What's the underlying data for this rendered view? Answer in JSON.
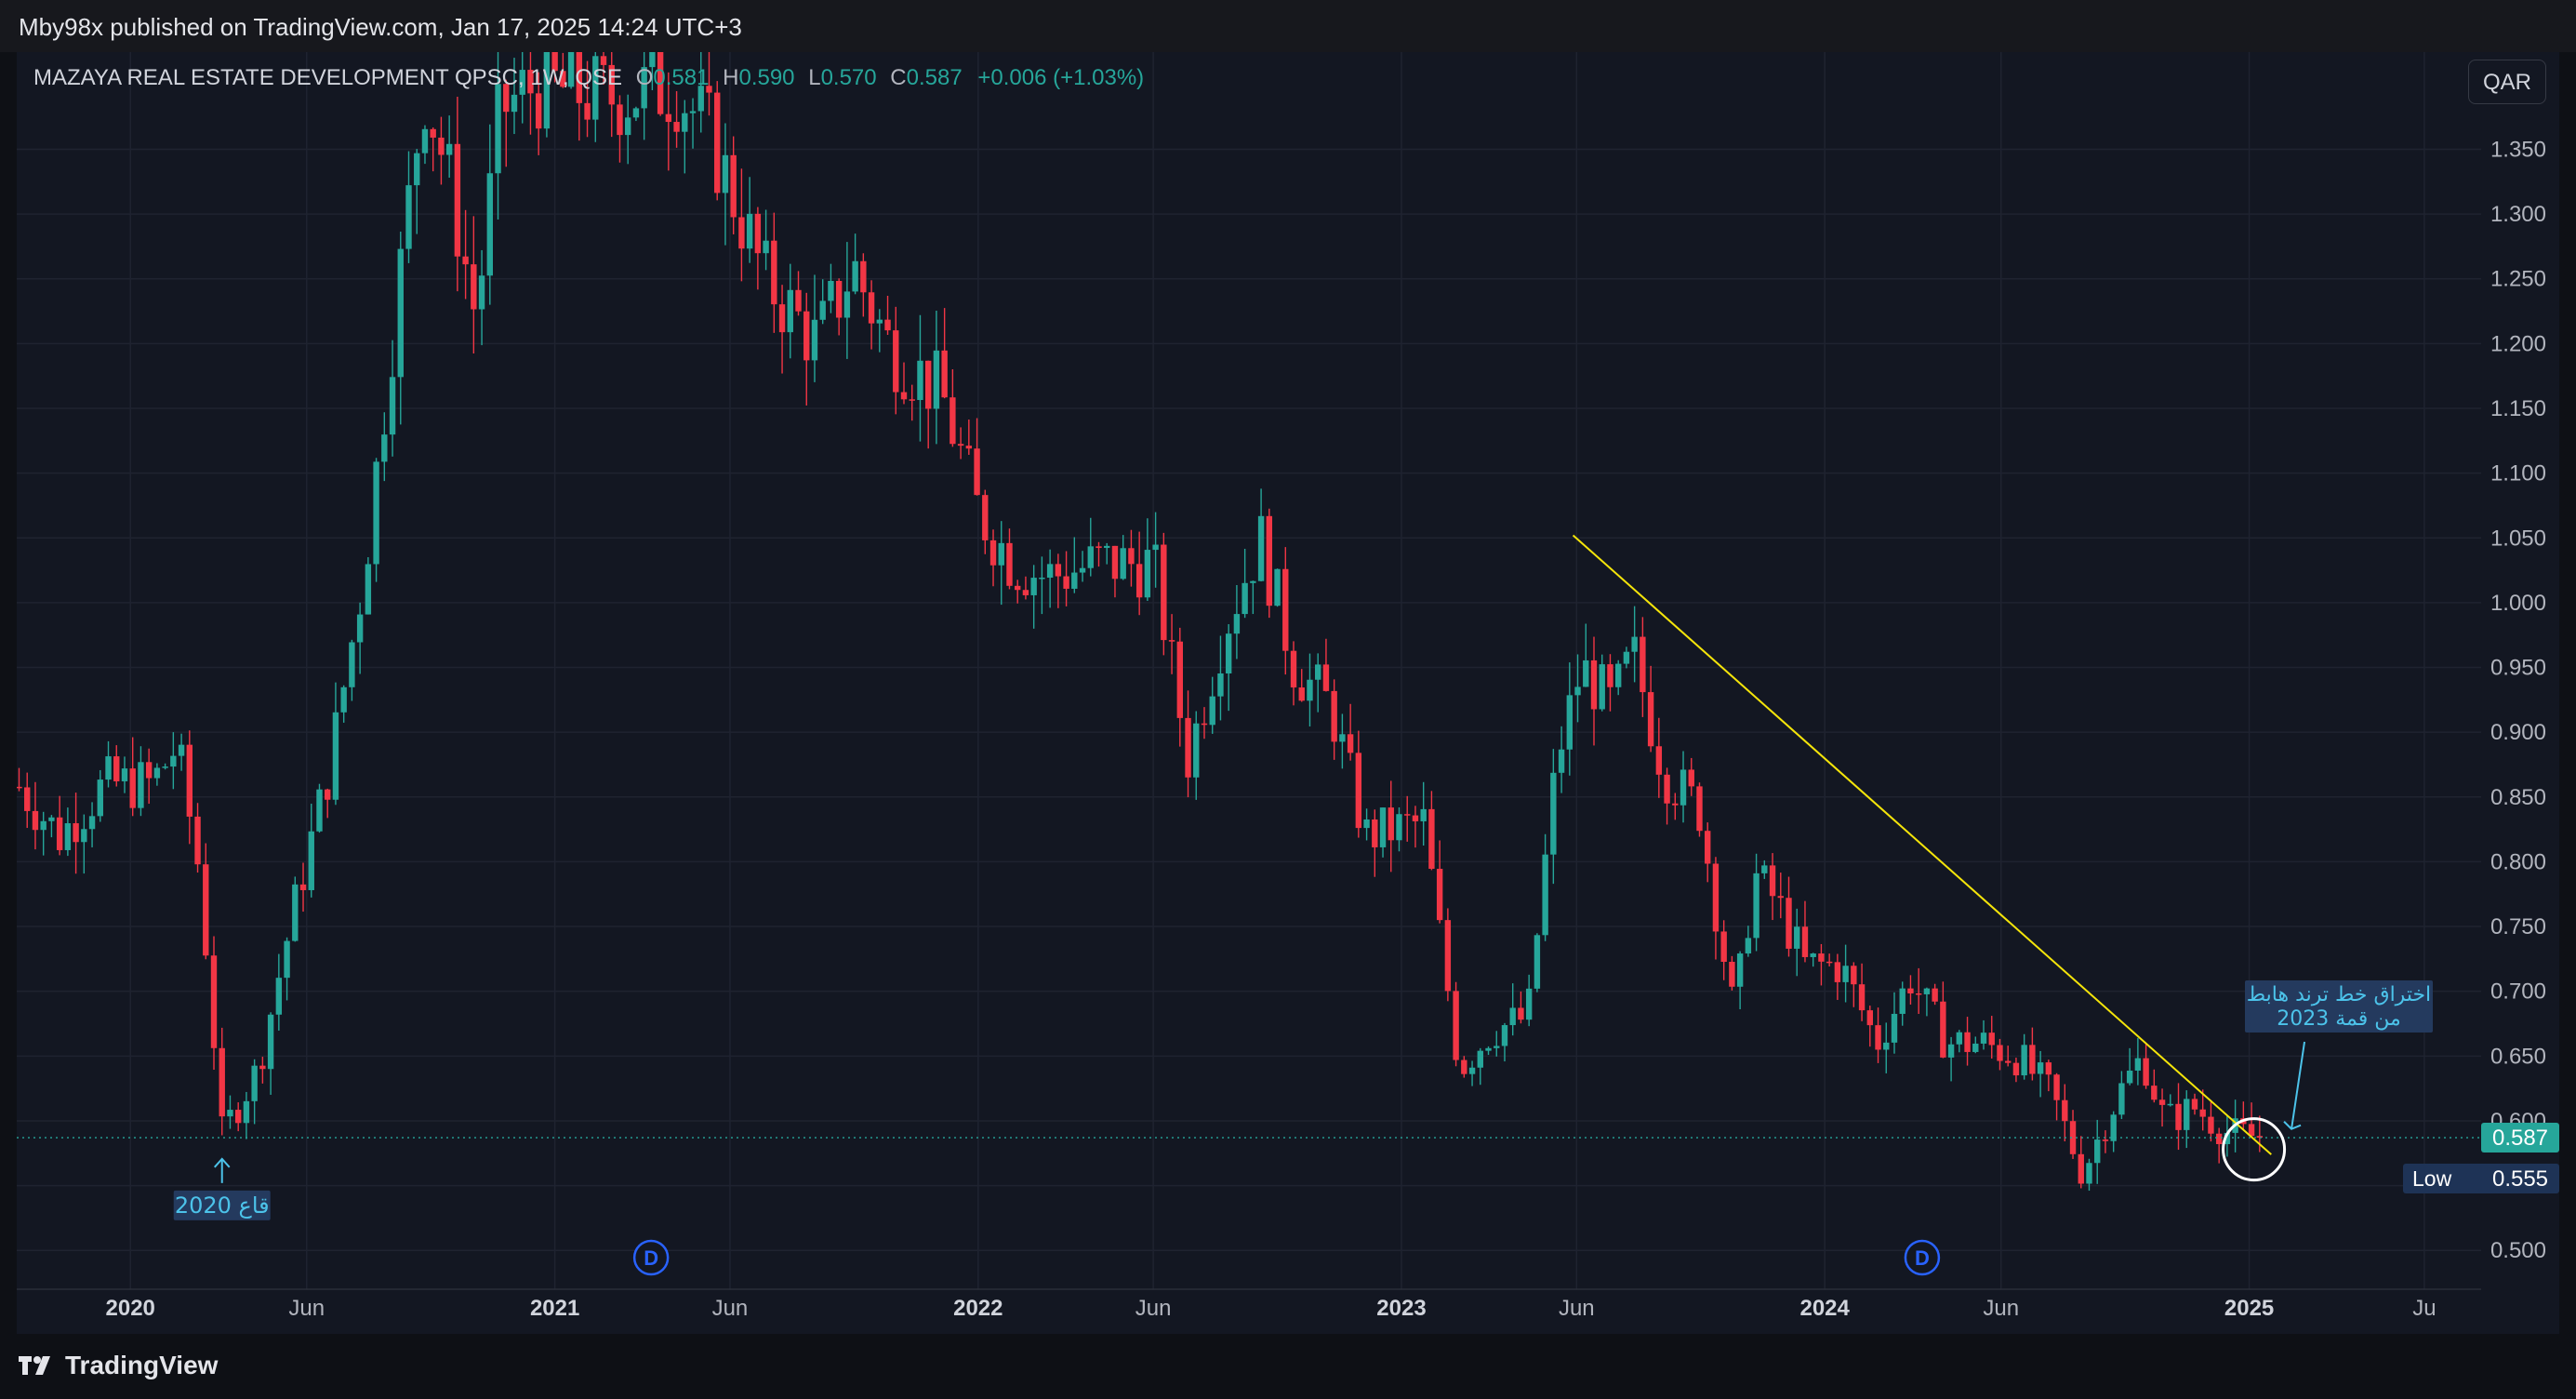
{
  "header": {
    "published_line": "Mby98x published on TradingView.com, Jan 17, 2025 14:24 UTC+3"
  },
  "legend": {
    "symbol": "MAZAYA REAL ESTATE DEVELOPMENT QPSC, 1W, QSE",
    "open_label": "O",
    "open": "0.581",
    "high_label": "H",
    "high": "0.590",
    "low_label": "L",
    "low": "0.570",
    "close_label": "C",
    "close": "0.587",
    "change": "+0.006 (+1.03%)"
  },
  "currency_button": "QAR",
  "footer": {
    "logo_text": "TradingView"
  },
  "colors": {
    "up": "#26a69a",
    "down": "#f23645",
    "trendline": "#f5e50a",
    "background": "#131722",
    "annotation": "#4cc3ea"
  },
  "chart_data": {
    "type": "candlestick",
    "interval": "1W",
    "title": "MAZAYA REAL ESTATE DEVELOPMENT QPSC, 1W, QSE",
    "xlim": [
      "2019-09-25",
      "2025-07-20"
    ],
    "ylim": [
      0.47,
      1.425
    ],
    "y_ticks": [
      "0.500",
      "0.550",
      "0.600",
      "0.650",
      "0.700",
      "0.750",
      "0.800",
      "0.850",
      "0.900",
      "0.950",
      "1.000",
      "1.050",
      "1.100",
      "1.150",
      "1.200",
      "1.250",
      "1.300",
      "1.350"
    ],
    "x_ticks": [
      {
        "label": "2020",
        "date": "2020-01-01",
        "bold": true
      },
      {
        "label": "Jun",
        "date": "2020-06-01",
        "bold": false
      },
      {
        "label": "2021",
        "date": "2021-01-01",
        "bold": true
      },
      {
        "label": "Jun",
        "date": "2021-06-01",
        "bold": false
      },
      {
        "label": "2022",
        "date": "2022-01-01",
        "bold": true
      },
      {
        "label": "Jun",
        "date": "2022-06-01",
        "bold": false
      },
      {
        "label": "2023",
        "date": "2023-01-01",
        "bold": true
      },
      {
        "label": "Jun",
        "date": "2023-06-01",
        "bold": false
      },
      {
        "label": "2024",
        "date": "2024-01-01",
        "bold": true
      },
      {
        "label": "Jun",
        "date": "2024-06-01",
        "bold": false
      },
      {
        "label": "2025",
        "date": "2025-01-01",
        "bold": true
      },
      {
        "label": "Ju",
        "date": "2025-06-01",
        "bold": false
      }
    ],
    "price_anchors": [
      [
        "2019-09-25",
        0.86
      ],
      [
        "2019-11-01",
        0.82
      ],
      [
        "2019-12-10",
        0.86
      ],
      [
        "2020-01-20",
        0.86
      ],
      [
        "2020-02-10",
        0.89
      ],
      [
        "2020-03-01",
        0.79
      ],
      [
        "2020-03-20",
        0.59
      ],
      [
        "2020-04-20",
        0.64
      ],
      [
        "2020-05-20",
        0.76
      ],
      [
        "2020-06-20",
        0.87
      ],
      [
        "2020-07-20",
        1.02
      ],
      [
        "2020-08-20",
        1.25
      ],
      [
        "2020-09-10",
        1.4
      ],
      [
        "2020-10-01",
        1.33
      ],
      [
        "2020-10-25",
        1.22
      ],
      [
        "2020-11-15",
        1.38
      ],
      [
        "2020-12-15",
        1.4
      ],
      [
        "2021-02-15",
        1.39
      ],
      [
        "2021-04-15",
        1.4
      ],
      [
        "2021-05-15",
        1.36
      ],
      [
        "2021-07-01",
        1.25
      ],
      [
        "2021-08-15",
        1.2
      ],
      [
        "2021-09-15",
        1.26
      ],
      [
        "2021-10-15",
        1.2
      ],
      [
        "2021-12-01",
        1.16
      ],
      [
        "2022-01-01",
        1.07
      ],
      [
        "2022-02-01",
        1.03
      ],
      [
        "2022-03-01",
        1.02
      ],
      [
        "2022-04-15",
        1.03
      ],
      [
        "2022-06-01",
        1.03
      ],
      [
        "2022-07-01",
        0.88
      ],
      [
        "2022-08-01",
        0.98
      ],
      [
        "2022-09-01",
        1.05
      ],
      [
        "2022-10-01",
        0.95
      ],
      [
        "2022-11-01",
        0.92
      ],
      [
        "2022-12-01",
        0.82
      ],
      [
        "2023-01-20",
        0.83
      ],
      [
        "2023-02-20",
        0.64
      ],
      [
        "2023-03-20",
        0.67
      ],
      [
        "2023-04-20",
        0.68
      ],
      [
        "2023-05-15",
        0.88
      ],
      [
        "2023-06-05",
        0.95
      ],
      [
        "2023-07-01",
        0.92
      ],
      [
        "2023-07-20",
        0.96
      ],
      [
        "2023-08-15",
        0.87
      ],
      [
        "2023-09-15",
        0.84
      ],
      [
        "2023-10-15",
        0.68
      ],
      [
        "2023-11-01",
        0.79
      ],
      [
        "2023-11-20",
        0.77
      ],
      [
        "2023-12-15",
        0.72
      ],
      [
        "2024-01-15",
        0.72
      ],
      [
        "2024-02-15",
        0.66
      ],
      [
        "2024-03-15",
        0.71
      ],
      [
        "2024-04-15",
        0.66
      ],
      [
        "2024-05-15",
        0.66
      ],
      [
        "2024-06-15",
        0.65
      ],
      [
        "2024-07-15",
        0.62
      ],
      [
        "2024-08-10",
        0.56
      ],
      [
        "2024-09-10",
        0.62
      ],
      [
        "2024-10-01",
        0.65
      ],
      [
        "2024-10-20",
        0.6
      ],
      [
        "2024-11-15",
        0.61
      ],
      [
        "2024-12-15",
        0.59
      ],
      [
        "2025-01-13",
        0.587
      ]
    ],
    "last_price": {
      "label": "0.587",
      "value": 0.587
    },
    "low_marker": {
      "label": "Low",
      "value": "0.555",
      "level": 0.555
    },
    "trendline": {
      "from": [
        "2023-05-29",
        1.052
      ],
      "to": [
        "2025-01-20",
        0.574
      ]
    },
    "annotations": [
      {
        "text": "قاع 2020",
        "date": "2020-03-20",
        "price": 0.585,
        "arrow": "up"
      },
      {
        "lines": [
          "اختراق خط ترند هابط",
          "من قمة 2023"
        ],
        "date": "2025-01-15",
        "price": 0.598,
        "arrow": "down"
      }
    ],
    "dividend_markers": [
      {
        "label": "D",
        "date": "2021-03-25"
      },
      {
        "label": "D",
        "date": "2024-03-25"
      }
    ],
    "breakout_circle": {
      "date": "2025-01-05",
      "price": 0.578
    }
  }
}
